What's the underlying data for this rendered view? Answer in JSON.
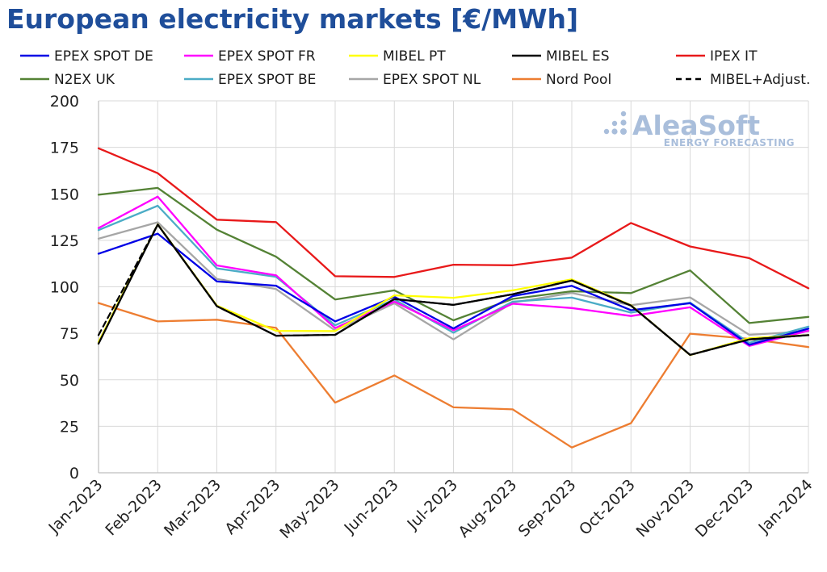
{
  "chart_data": {
    "type": "line",
    "title": "European electricity markets [€/MWh]",
    "xlabel": "",
    "ylabel": "",
    "ylim": [
      0,
      200
    ],
    "yticks": [
      0,
      25,
      50,
      75,
      100,
      125,
      150,
      175,
      200
    ],
    "grid": true,
    "legend_position": "top",
    "categories": [
      "Jan-2023",
      "Feb-2023",
      "Mar-2023",
      "Apr-2023",
      "May-2023",
      "Jun-2023",
      "Jul-2023",
      "Aug-2023",
      "Sep-2023",
      "Oct-2023",
      "Nov-2023",
      "Dec-2023",
      "Jan-2024"
    ],
    "series": [
      {
        "name": "EPEX SPOT DE",
        "color": "#0000e6",
        "dash": false,
        "values": [
          117.8,
          128.6,
          102.9,
          100.6,
          81.4,
          94.6,
          77.6,
          95.0,
          100.5,
          87.4,
          91.2,
          68.8,
          77.5
        ]
      },
      {
        "name": "EPEX SPOT FR",
        "color": "#ff00ff",
        "dash": false,
        "values": [
          131.6,
          148.5,
          111.5,
          106.2,
          77.8,
          92.0,
          76.6,
          90.9,
          88.6,
          84.3,
          89.0,
          68.2,
          76.4
        ]
      },
      {
        "name": "MIBEL PT",
        "color": "#ffff00",
        "dash": false,
        "values": [
          70.3,
          133.6,
          89.9,
          76.3,
          76.2,
          95.4,
          94.1,
          98.1,
          104.0,
          90.1,
          63.3,
          72.4,
          74.0
        ]
      },
      {
        "name": "MIBEL ES",
        "color": "#000000",
        "dash": false,
        "values": [
          69.4,
          133.5,
          89.6,
          73.7,
          74.2,
          93.4,
          90.3,
          96.0,
          103.4,
          89.9,
          63.4,
          71.7,
          74.0
        ]
      },
      {
        "name": "IPEX IT",
        "color": "#e8191a",
        "dash": false,
        "values": [
          174.5,
          161.1,
          136.1,
          134.8,
          105.7,
          105.3,
          111.9,
          111.6,
          115.7,
          134.3,
          121.7,
          115.4,
          99.2
        ]
      },
      {
        "name": "N2EX UK",
        "color": "#548235",
        "dash": false,
        "values": [
          149.5,
          153.2,
          130.7,
          116.2,
          93.2,
          98.1,
          82.0,
          93.5,
          97.6,
          96.6,
          108.8,
          80.5,
          83.8
        ]
      },
      {
        "name": "EPEX SPOT BE",
        "color": "#4bacc6",
        "dash": false,
        "values": [
          130.5,
          143.6,
          109.9,
          105.4,
          79.3,
          93.2,
          75.3,
          92.0,
          94.2,
          86.1,
          91.5,
          69.9,
          78.6
        ]
      },
      {
        "name": "EPEX SPOT NL",
        "color": "#a6a6a6",
        "dash": false,
        "values": [
          125.9,
          134.7,
          104.2,
          98.8,
          76.5,
          91.1,
          71.7,
          91.5,
          96.7,
          90.1,
          94.3,
          74.2,
          76.1
        ]
      },
      {
        "name": "Nord Pool",
        "color": "#ed7d31",
        "dash": false,
        "values": [
          91.3,
          81.4,
          82.3,
          77.9,
          37.7,
          52.3,
          35.2,
          34.1,
          13.6,
          26.7,
          74.8,
          72.0,
          67.6
        ]
      },
      {
        "name": "MIBEL+Adjust.",
        "color": "#000000",
        "dash": true,
        "values": [
          74.0,
          133.5,
          89.6,
          73.7,
          74.2,
          93.4,
          90.3,
          96.0,
          103.4,
          89.9,
          63.4,
          71.7,
          74.0
        ]
      }
    ]
  },
  "logo": {
    "name": "AleaSoft",
    "tagline": "ENERGY FORECASTING",
    "color": "#a9bedb"
  }
}
